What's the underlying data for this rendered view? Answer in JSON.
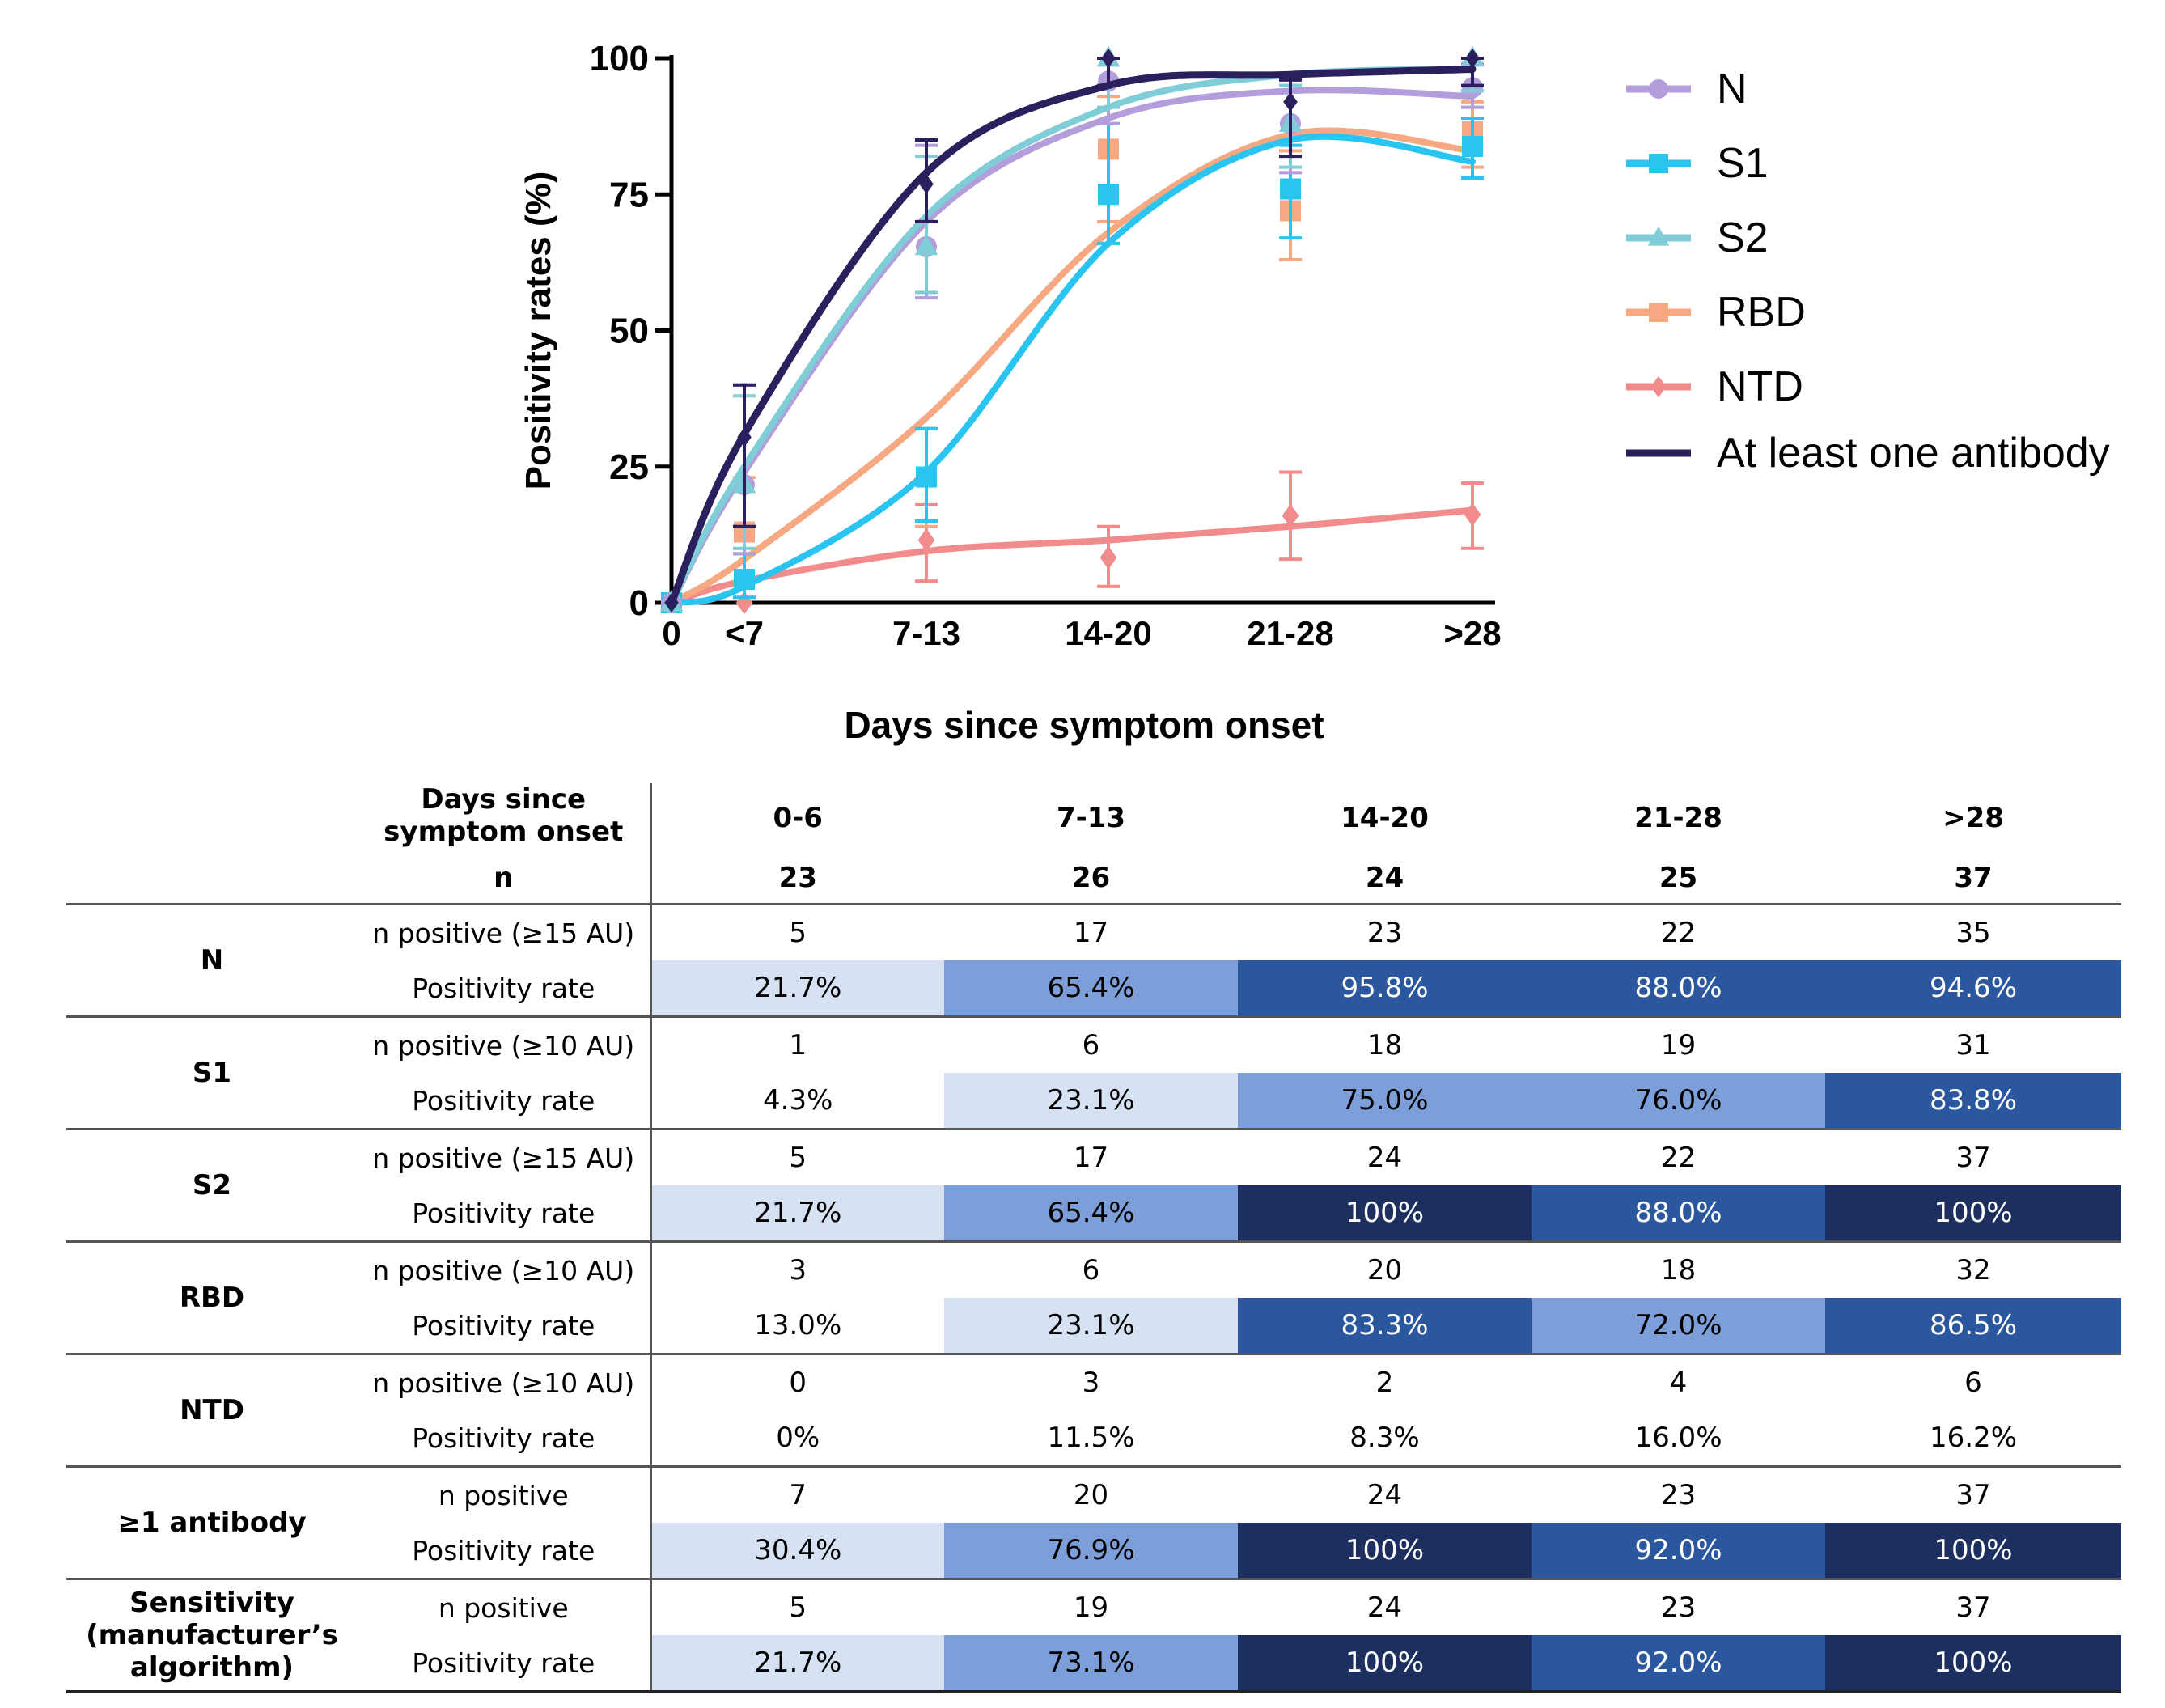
{
  "chart_data": {
    "type": "line",
    "ylabel": "Positivity rates (%)",
    "xlabel": "Days since symptom onset",
    "categories": [
      "0",
      "<7",
      "7-13",
      "14-20",
      "21-28",
      ">28"
    ],
    "x_positions": [
      0,
      0.4,
      1.4,
      2.4,
      3.4,
      4.4
    ],
    "ylim": [
      0,
      100
    ],
    "yticks": [
      0,
      25,
      50,
      75,
      100
    ],
    "legend_position": "right",
    "series": [
      {
        "name": "N",
        "color": "#b39ddb",
        "marker": "circle",
        "values": [
          0,
          21.7,
          65.4,
          95.8,
          88.0,
          94.6
        ],
        "ci_low": [
          0,
          9,
          56,
          88,
          79,
          91
        ],
        "ci_high": [
          0,
          40,
          84,
          100,
          95,
          99
        ],
        "fit": [
          0,
          24,
          70,
          89,
          94,
          93
        ]
      },
      {
        "name": "S1",
        "color": "#29c4f0",
        "marker": "square",
        "values": [
          0,
          4.3,
          23.1,
          75.0,
          76.0,
          83.8
        ],
        "ci_low": [
          0,
          1,
          15,
          66,
          67,
          78
        ],
        "ci_high": [
          0,
          9,
          32,
          88,
          84,
          89
        ],
        "fit": [
          0,
          3,
          24,
          66,
          85,
          81
        ]
      },
      {
        "name": "S2",
        "color": "#7fcdd6",
        "marker": "triangle",
        "values": [
          0,
          21.7,
          65.4,
          100,
          88.0,
          100
        ],
        "ci_low": [
          0,
          10,
          57,
          91,
          80,
          94
        ],
        "ci_high": [
          0,
          38,
          82,
          100,
          95,
          100
        ],
        "fit": [
          0,
          25,
          71,
          91,
          97,
          98
        ]
      },
      {
        "name": "RBD",
        "color": "#f5a882",
        "marker": "square",
        "values": [
          0,
          13.0,
          23.1,
          83.3,
          72.0,
          86.5
        ],
        "ci_low": [
          0,
          4,
          14,
          70,
          63,
          80
        ],
        "ci_high": [
          0,
          23,
          32,
          93,
          83,
          92
        ],
        "fit": [
          0,
          8,
          34,
          68,
          86,
          83
        ]
      },
      {
        "name": "NTD",
        "color": "#f28b8b",
        "marker": "diamond",
        "values": [
          0,
          0,
          11.5,
          8.3,
          16.0,
          16.2
        ],
        "ci_low": [
          0,
          0,
          4,
          3,
          8,
          10
        ],
        "ci_high": [
          0,
          0,
          18,
          14,
          24,
          22
        ],
        "fit": [
          0,
          4,
          9.5,
          11.5,
          14,
          17
        ]
      },
      {
        "name": "At least one antibody",
        "color": "#2b1f5e",
        "marker": "diamond",
        "values": [
          0,
          30.4,
          76.9,
          100,
          92.0,
          100
        ],
        "ci_low": [
          0,
          14,
          70,
          95,
          82,
          95
        ],
        "ci_high": [
          0,
          40,
          85,
          100,
          96,
          100
        ],
        "fit": [
          0,
          31,
          79,
          95,
          97,
          98
        ]
      }
    ]
  },
  "table": {
    "corner": {
      "line1": "Days since",
      "line2": "symptom onset",
      "n_label": "n"
    },
    "columns": [
      {
        "label": "0-6",
        "n": "23"
      },
      {
        "label": "7-13",
        "n": "26"
      },
      {
        "label": "14-20",
        "n": "24"
      },
      {
        "label": "21-28",
        "n": "25"
      },
      {
        "label": ">28",
        "n": "37"
      }
    ],
    "groups": [
      {
        "name": "N",
        "count_label": "n positive (≥15 AU)",
        "rate_label": "Positivity rate",
        "counts": [
          "5",
          "17",
          "23",
          "22",
          "35"
        ],
        "rates": [
          {
            "text": "21.7%",
            "bg": "#d6e1f3",
            "fg": "#000000"
          },
          {
            "text": "65.4%",
            "bg": "#7d9fd9",
            "fg": "#000000"
          },
          {
            "text": "95.8%",
            "bg": "#2b579e",
            "fg": "#ffffff"
          },
          {
            "text": "88.0%",
            "bg": "#2b579e",
            "fg": "#ffffff"
          },
          {
            "text": "94.6%",
            "bg": "#2b579e",
            "fg": "#ffffff"
          }
        ]
      },
      {
        "name": "S1",
        "count_label": "n positive (≥10 AU)",
        "rate_label": "Positivity rate",
        "counts": [
          "1",
          "6",
          "18",
          "19",
          "31"
        ],
        "rates": [
          {
            "text": "4.3%",
            "bg": "#ffffff",
            "fg": "#000000"
          },
          {
            "text": "23.1%",
            "bg": "#d6e1f3",
            "fg": "#000000"
          },
          {
            "text": "75.0%",
            "bg": "#7d9fd9",
            "fg": "#000000"
          },
          {
            "text": "76.0%",
            "bg": "#7d9fd9",
            "fg": "#000000"
          },
          {
            "text": "83.8%",
            "bg": "#2b579e",
            "fg": "#ffffff"
          }
        ]
      },
      {
        "name": "S2",
        "count_label": "n positive (≥15 AU)",
        "rate_label": "Positivity rate",
        "counts": [
          "5",
          "17",
          "24",
          "22",
          "37"
        ],
        "rates": [
          {
            "text": "21.7%",
            "bg": "#d6e1f3",
            "fg": "#000000"
          },
          {
            "text": "65.4%",
            "bg": "#7d9fd9",
            "fg": "#000000"
          },
          {
            "text": "100%",
            "bg": "#1c2f5e",
            "fg": "#ffffff"
          },
          {
            "text": "88.0%",
            "bg": "#2b579e",
            "fg": "#ffffff"
          },
          {
            "text": "100%",
            "bg": "#1c2f5e",
            "fg": "#ffffff"
          }
        ]
      },
      {
        "name": "RBD",
        "count_label": "n positive (≥10 AU)",
        "rate_label": "Positivity rate",
        "counts": [
          "3",
          "6",
          "20",
          "18",
          "32"
        ],
        "rates": [
          {
            "text": "13.0%",
            "bg": "#ffffff",
            "fg": "#000000"
          },
          {
            "text": "23.1%",
            "bg": "#d6e1f3",
            "fg": "#000000"
          },
          {
            "text": "83.3%",
            "bg": "#2b579e",
            "fg": "#ffffff"
          },
          {
            "text": "72.0%",
            "bg": "#7d9fd9",
            "fg": "#000000"
          },
          {
            "text": "86.5%",
            "bg": "#2b579e",
            "fg": "#ffffff"
          }
        ]
      },
      {
        "name": "NTD",
        "count_label": "n positive (≥10 AU)",
        "rate_label": "Positivity rate",
        "counts": [
          "0",
          "3",
          "2",
          "4",
          "6"
        ],
        "rates": [
          {
            "text": "0%",
            "bg": "#ffffff",
            "fg": "#000000"
          },
          {
            "text": "11.5%",
            "bg": "#ffffff",
            "fg": "#000000"
          },
          {
            "text": "8.3%",
            "bg": "#ffffff",
            "fg": "#000000"
          },
          {
            "text": "16.0%",
            "bg": "#ffffff",
            "fg": "#000000"
          },
          {
            "text": "16.2%",
            "bg": "#ffffff",
            "fg": "#000000"
          }
        ]
      },
      {
        "name": "≥1 antibody",
        "count_label": "n positive",
        "rate_label": "Positivity rate",
        "counts": [
          "7",
          "20",
          "24",
          "23",
          "37"
        ],
        "rates": [
          {
            "text": "30.4%",
            "bg": "#d6e1f3",
            "fg": "#000000"
          },
          {
            "text": "76.9%",
            "bg": "#7d9fd9",
            "fg": "#000000"
          },
          {
            "text": "100%",
            "bg": "#1c2f5e",
            "fg": "#ffffff"
          },
          {
            "text": "92.0%",
            "bg": "#2b579e",
            "fg": "#ffffff"
          },
          {
            "text": "100%",
            "bg": "#1c2f5e",
            "fg": "#ffffff"
          }
        ]
      },
      {
        "name_lines": [
          "Sensitivity",
          "(manufacturer’s",
          "algorithm)"
        ],
        "count_label": "n positive",
        "rate_label": "Positivity rate",
        "counts": [
          "5",
          "19",
          "24",
          "23",
          "37"
        ],
        "rates": [
          {
            "text": "21.7%",
            "bg": "#d6e1f3",
            "fg": "#000000"
          },
          {
            "text": "73.1%",
            "bg": "#7d9fd9",
            "fg": "#000000"
          },
          {
            "text": "100%",
            "bg": "#1c2f5e",
            "fg": "#ffffff"
          },
          {
            "text": "92.0%",
            "bg": "#2b579e",
            "fg": "#ffffff"
          },
          {
            "text": "100%",
            "bg": "#1c2f5e",
            "fg": "#ffffff"
          }
        ]
      }
    ]
  }
}
